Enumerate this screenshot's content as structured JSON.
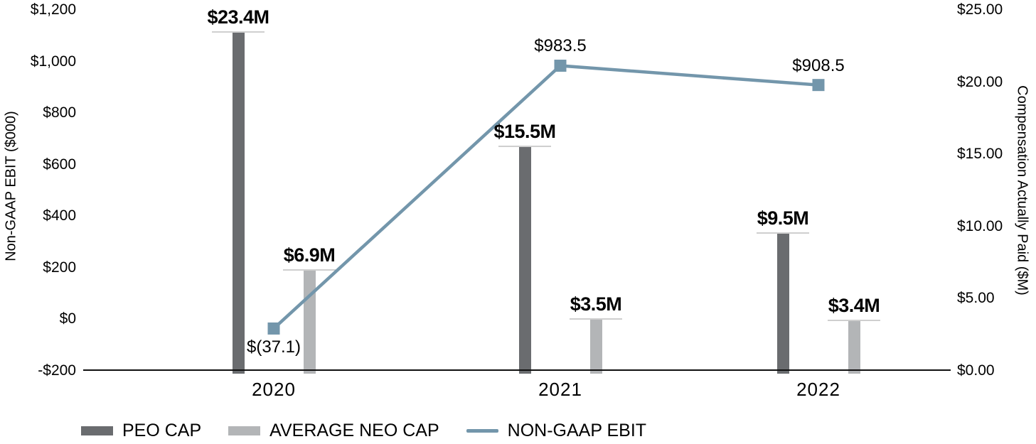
{
  "chart_data": {
    "type": "combo-bar-line",
    "categories": [
      "2020",
      "2021",
      "2022"
    ],
    "series": [
      {
        "name": "PEO CAP",
        "type": "bar",
        "axis": "right",
        "color": "#6a6c6f",
        "values": [
          23.4,
          15.5,
          9.5
        ],
        "labels": [
          "$23.4M",
          "$15.5M",
          "$9.5M"
        ]
      },
      {
        "name": "AVERAGE NEO CAP",
        "type": "bar",
        "axis": "right",
        "color": "#b3b5b7",
        "values": [
          6.9,
          3.5,
          3.4
        ],
        "labels": [
          "$6.9M",
          "$3.5M",
          "$3.4M"
        ]
      },
      {
        "name": "NON-GAAP EBIT",
        "type": "line",
        "axis": "left",
        "color": "#7396ab",
        "values": [
          -37.1,
          983.5,
          908.5
        ],
        "labels": [
          "$(37.1)",
          "$983.5",
          "$908.5"
        ],
        "label_positions": [
          "below",
          "above",
          "above"
        ]
      }
    ],
    "left_axis": {
      "title": "Non-GAAP EBIT ($000)",
      "min": -200,
      "max": 1200,
      "step": 200,
      "tick_labels": [
        "$1,200",
        "$1,000",
        "$800",
        "$600",
        "$400",
        "$200",
        "$0",
        "-$200"
      ]
    },
    "right_axis": {
      "title": "Compensation Actually Paid ($M)",
      "min": 0,
      "max": 25,
      "step": 5,
      "tick_labels": [
        "$25.00",
        "$20.00",
        "$15.00",
        "$10.00",
        "$5.00",
        "$0.00"
      ]
    },
    "legend": [
      {
        "label": "PEO CAP",
        "swatch": "bar",
        "color": "#6a6c6f"
      },
      {
        "label": "AVERAGE NEO CAP",
        "swatch": "bar",
        "color": "#b3b5b7"
      },
      {
        "label": "NON-GAAP EBIT",
        "swatch": "line",
        "color": "#7396ab"
      }
    ],
    "label_underline_color": "#cfcfcf",
    "axis_line_color": "#0f0f0f",
    "grid": false,
    "legend_position": "bottom-left"
  }
}
